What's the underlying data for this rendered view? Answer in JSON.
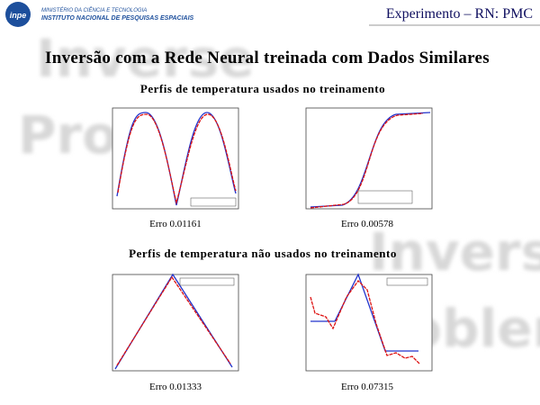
{
  "header": {
    "logo": "inpe",
    "ministry": "MINISTÉRIO DA CIÊNCIA E TECNOLOGIA",
    "institute": "INSTITUTO NACIONAL DE PESQUISAS ESPACIAIS",
    "badge": "Experimento – RN: PMC"
  },
  "watermark": {
    "left": [
      "Inverse",
      "Prob"
    ],
    "right": [
      "Inverse",
      "Problem"
    ]
  },
  "title": "Inversão com a Rede Neural treinada com Dados Similares",
  "sections": [
    {
      "heading": "Perfis de temperatura usados no treinamento",
      "captions": [
        "Erro 0.01161",
        "Erro 0.00578"
      ]
    },
    {
      "heading": "Perfis de temperatura não usados no treinamento",
      "captions": [
        "Erro 0.01333",
        "Erro 0.07315"
      ]
    }
  ]
}
